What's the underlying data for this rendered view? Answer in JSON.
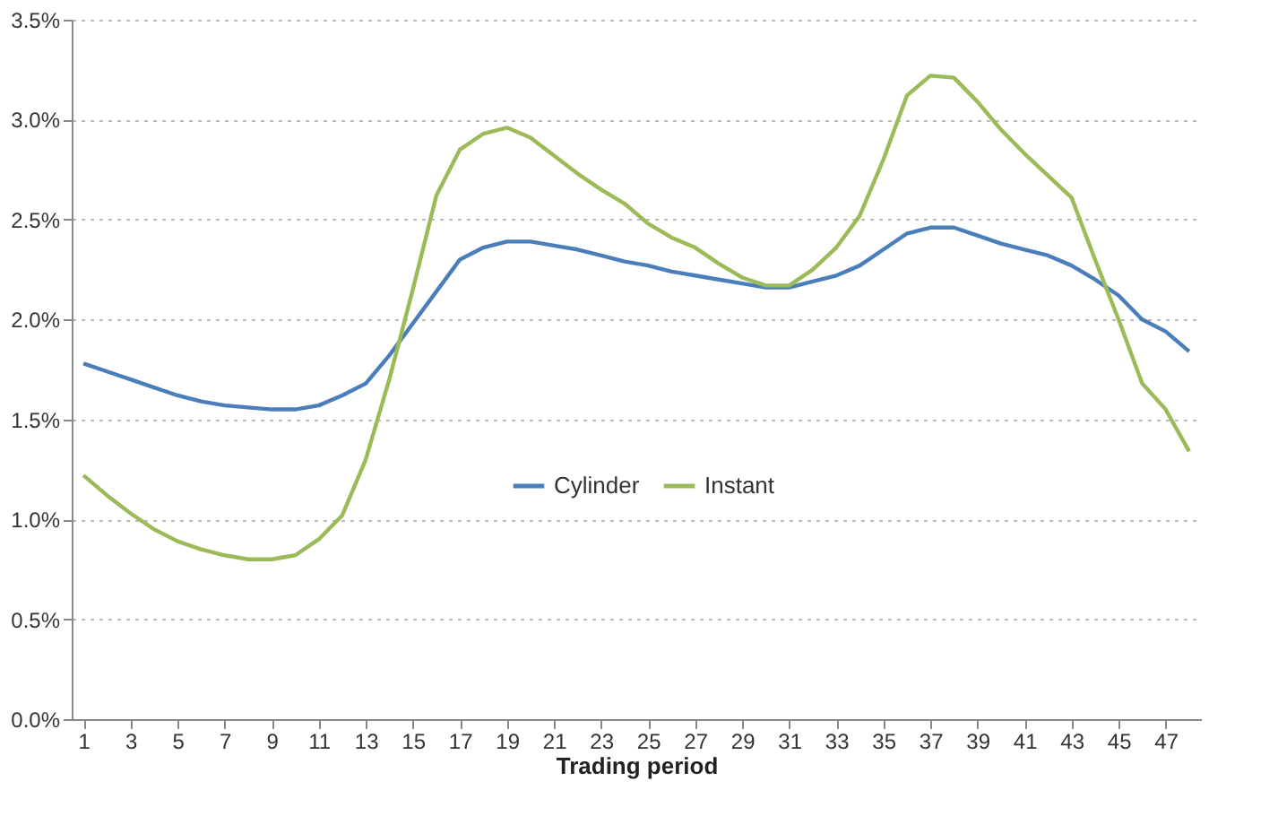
{
  "chart_data": {
    "type": "line",
    "xlabel": "Trading period",
    "x": [
      1,
      2,
      3,
      4,
      5,
      6,
      7,
      8,
      9,
      10,
      11,
      12,
      13,
      14,
      15,
      16,
      17,
      18,
      19,
      20,
      21,
      22,
      23,
      24,
      25,
      26,
      27,
      28,
      29,
      30,
      31,
      32,
      33,
      34,
      35,
      36,
      37,
      38,
      39,
      40,
      41,
      42,
      43,
      44,
      45,
      46,
      47,
      48
    ],
    "xlim": [
      0.5,
      48.5
    ],
    "xticks": [
      1,
      3,
      5,
      7,
      9,
      11,
      13,
      15,
      17,
      19,
      21,
      23,
      25,
      27,
      29,
      31,
      33,
      35,
      37,
      39,
      41,
      43,
      45,
      47
    ],
    "series": [
      {
        "name": "Cylinder",
        "color": "#4a7ebb",
        "values": [
          1.78,
          1.74,
          1.7,
          1.66,
          1.62,
          1.59,
          1.57,
          1.56,
          1.55,
          1.55,
          1.57,
          1.62,
          1.68,
          1.82,
          1.98,
          2.14,
          2.3,
          2.36,
          2.39,
          2.39,
          2.37,
          2.35,
          2.32,
          2.29,
          2.27,
          2.24,
          2.22,
          2.2,
          2.18,
          2.16,
          2.16,
          2.19,
          2.22,
          2.27,
          2.35,
          2.43,
          2.46,
          2.46,
          2.42,
          2.38,
          2.35,
          2.32,
          2.27,
          2.2,
          2.12,
          2.0,
          1.94,
          1.84
        ]
      },
      {
        "name": "Instant",
        "color": "#9bbb59",
        "values": [
          1.22,
          1.12,
          1.03,
          0.95,
          0.89,
          0.85,
          0.82,
          0.8,
          0.8,
          0.82,
          0.9,
          1.02,
          1.3,
          1.7,
          2.15,
          2.62,
          2.85,
          2.93,
          2.96,
          2.91,
          2.82,
          2.73,
          2.65,
          2.58,
          2.48,
          2.41,
          2.36,
          2.28,
          2.21,
          2.17,
          2.17,
          2.25,
          2.36,
          2.52,
          2.8,
          3.12,
          3.22,
          3.21,
          3.09,
          2.95,
          2.83,
          2.72,
          2.61,
          2.3,
          2.0,
          1.68,
          1.55,
          1.34
        ]
      }
    ],
    "ylim": [
      0,
      3.5
    ],
    "yticks": [
      {
        "value": 0,
        "label": "0.0%"
      },
      {
        "value": 0.5,
        "label": "0.5%"
      },
      {
        "value": 1,
        "label": "1.0%"
      },
      {
        "value": 1.5,
        "label": "1.5%"
      },
      {
        "value": 2,
        "label": "2.0%"
      },
      {
        "value": 2.5,
        "label": "2.5%"
      },
      {
        "value": 3,
        "label": "3.0%"
      },
      {
        "value": 3.5,
        "label": "3.5%"
      }
    ],
    "grid": "y",
    "legend": "center",
    "marker": "none",
    "line_style": "solid"
  }
}
